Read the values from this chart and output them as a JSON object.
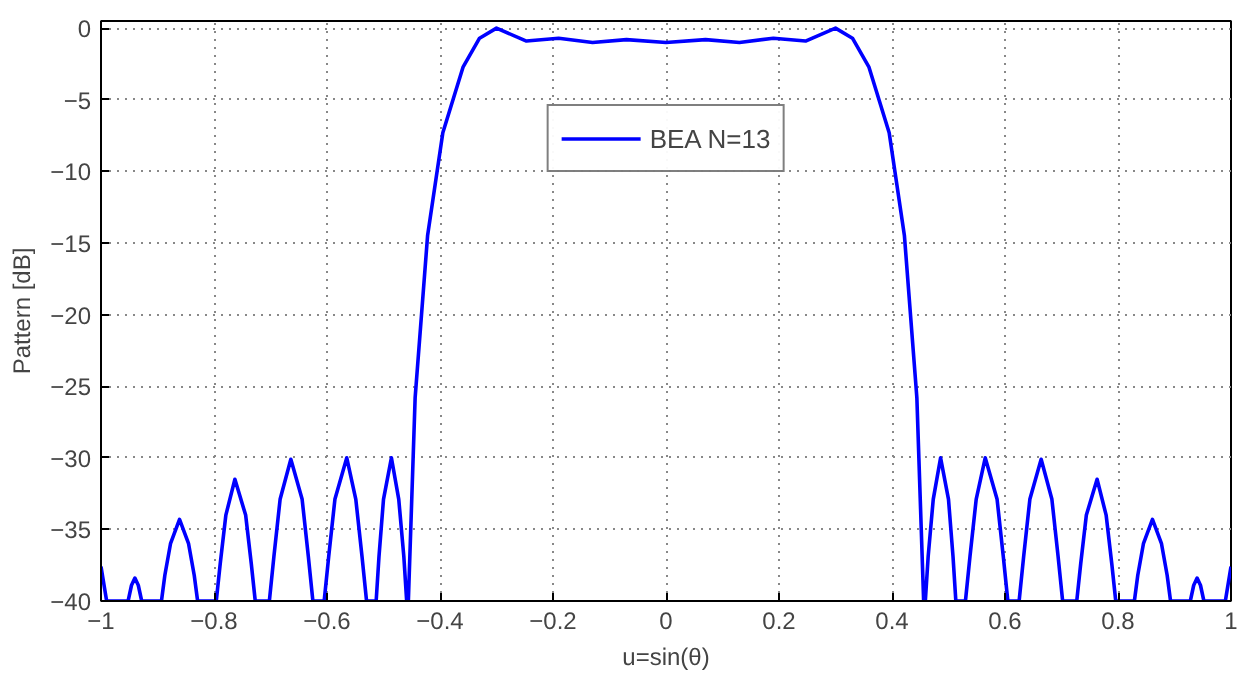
{
  "chart_data": {
    "type": "line",
    "xlabel": "u=sin(θ)",
    "ylabel": "Pattern [dB]",
    "xlim": [
      -1,
      1
    ],
    "ylim": [
      -40,
      0.5
    ],
    "xticks": [
      {
        "value": -1,
        "label": "−1"
      },
      {
        "value": -0.8,
        "label": "−0.8"
      },
      {
        "value": -0.6,
        "label": "−0.6"
      },
      {
        "value": -0.4,
        "label": "−0.4"
      },
      {
        "value": -0.2,
        "label": "−0.2"
      },
      0,
      0.2,
      0.4,
      0.6,
      0.8,
      1
    ],
    "yticks": [
      0,
      {
        "value": -5,
        "label": "−5"
      },
      {
        "value": -10,
        "label": "−10"
      },
      {
        "value": -15,
        "label": "−15"
      },
      {
        "value": -20,
        "label": "−20"
      },
      {
        "value": -25,
        "label": "−25"
      },
      {
        "value": -30,
        "label": "−30"
      },
      {
        "value": -35,
        "label": "−35"
      },
      {
        "value": -40,
        "label": "−40"
      }
    ],
    "grid": true,
    "legend": "top",
    "line_style": "solid",
    "series": [
      {
        "name": "BEA N=13",
        "color": "#0000ff",
        "x": [
          -1,
          -0.99,
          -0.952,
          -0.946,
          -0.94,
          -0.934,
          -0.928,
          -0.893,
          -0.887,
          -0.877,
          -0.861,
          -0.845,
          -0.835,
          -0.829,
          -0.796,
          -0.789,
          -0.779,
          -0.763,
          -0.744,
          -0.734,
          -0.727,
          -0.702,
          -0.694,
          -0.683,
          -0.664,
          -0.644,
          -0.633,
          -0.625,
          -0.605,
          -0.597,
          -0.586,
          -0.565,
          -0.549,
          -0.538,
          -0.53,
          -0.513,
          -0.508,
          -0.5,
          -0.486,
          -0.473,
          -0.464,
          -0.459,
          -0.456,
          -0.444,
          -0.422,
          -0.395,
          -0.359,
          -0.33,
          -0.3,
          -0.247,
          -0.19,
          -0.13,
          -0.07,
          0,
          0.07,
          0.13,
          0.19,
          0.247,
          0.3,
          0.33,
          0.359,
          0.395,
          0.422,
          0.444,
          0.456,
          0.459,
          0.464,
          0.473,
          0.486,
          0.5,
          0.508,
          0.513,
          0.53,
          0.538,
          0.549,
          0.565,
          0.586,
          0.597,
          0.605,
          0.625,
          0.633,
          0.644,
          0.664,
          0.683,
          0.694,
          0.702,
          0.727,
          0.734,
          0.744,
          0.763,
          0.779,
          0.789,
          0.796,
          0.829,
          0.835,
          0.845,
          0.861,
          0.877,
          0.887,
          0.893,
          0.928,
          0.934,
          0.94,
          0.946,
          0.952,
          0.99,
          1
        ],
        "values": [
          -37.6,
          -40,
          -40,
          -38.9,
          -38.4,
          -38.9,
          -40,
          -40,
          -38.2,
          -36,
          -34.3,
          -36,
          -38.2,
          -40,
          -40,
          -37.4,
          -34,
          -31.5,
          -34,
          -37.4,
          -40,
          -40,
          -36.9,
          -32.9,
          -30.1,
          -32.9,
          -36.9,
          -40,
          -40,
          -36.9,
          -32.9,
          -30,
          -32.9,
          -36.9,
          -40,
          -40,
          -36.9,
          -32.9,
          -30,
          -32.9,
          -36.9,
          -40,
          -40,
          -25.8,
          -14.5,
          -7.3,
          -2.7,
          -0.7,
          0,
          -0.9,
          -0.7,
          -1,
          -0.8,
          -1,
          -0.8,
          -1,
          -0.7,
          -0.9,
          0,
          -0.7,
          -2.7,
          -7.3,
          -14.5,
          -25.8,
          -40,
          -40,
          -36.9,
          -32.9,
          -30,
          -32.9,
          -36.9,
          -40,
          -40,
          -36.9,
          -32.9,
          -30,
          -32.9,
          -36.9,
          -40,
          -40,
          -36.9,
          -32.9,
          -30.1,
          -32.9,
          -36.9,
          -40,
          -40,
          -37.4,
          -34,
          -31.5,
          -34,
          -37.4,
          -40,
          -40,
          -38.2,
          -36,
          -34.3,
          -36,
          -38.2,
          -40,
          -40,
          -38.9,
          -38.4,
          -38.9,
          -40,
          -40,
          -37.6
        ]
      }
    ]
  }
}
